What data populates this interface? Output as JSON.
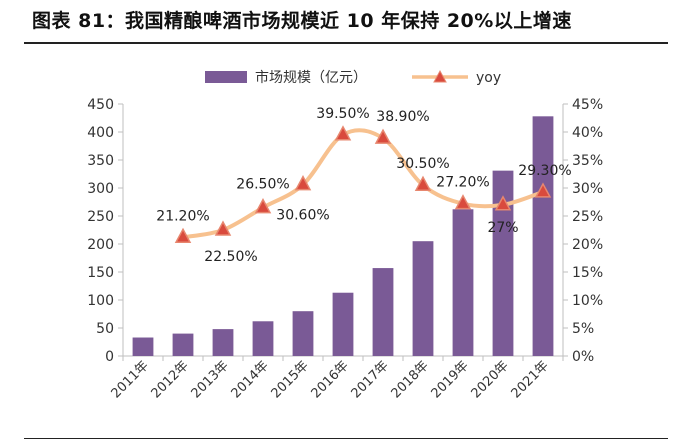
{
  "title": "图表 81：我国精酿啤酒市场规模近 10 年保持 20%以上增速",
  "colors": {
    "bar": "#7a5a96",
    "line": "#f7c18f",
    "marker_fill": "#d94a3d",
    "marker_stroke": "#e7876f",
    "axis": "#bfbfbf"
  },
  "chart_data": {
    "type": "bar",
    "categories": [
      "2011年",
      "2012年",
      "2013年",
      "2014年",
      "2015年",
      "2016年",
      "2017年",
      "2018年",
      "2019年",
      "2020年",
      "2021年"
    ],
    "series": [
      {
        "name": "市场规模（亿元）",
        "type": "bar",
        "axis": "left",
        "values": [
          33,
          40,
          48,
          62,
          80,
          113,
          157,
          205,
          262,
          331,
          428
        ]
      },
      {
        "name": "yoy",
        "type": "line",
        "axis": "right",
        "values": [
          null,
          21.2,
          22.5,
          26.5,
          30.6,
          39.5,
          38.9,
          30.5,
          27.2,
          27.0,
          29.3
        ],
        "labels": [
          "",
          "21.20%",
          "22.50%",
          "26.50%",
          "30.60%",
          "39.50%",
          "38.90%",
          "30.50%",
          "27.20%",
          "27%",
          "29.30%"
        ]
      }
    ],
    "y_left": {
      "min": 0,
      "max": 450,
      "step": 50,
      "ticks": [
        "0",
        "50",
        "100",
        "150",
        "200",
        "250",
        "300",
        "350",
        "400",
        "450"
      ]
    },
    "y_right": {
      "min": 0,
      "max": 45,
      "step": 5,
      "ticks": [
        "0%",
        "5%",
        "10%",
        "15%",
        "20%",
        "25%",
        "30%",
        "35%",
        "40%",
        "45%"
      ]
    },
    "legend": {
      "position": "top-center",
      "items": [
        "市场规模（亿元）",
        "yoy"
      ]
    },
    "grid": false
  }
}
